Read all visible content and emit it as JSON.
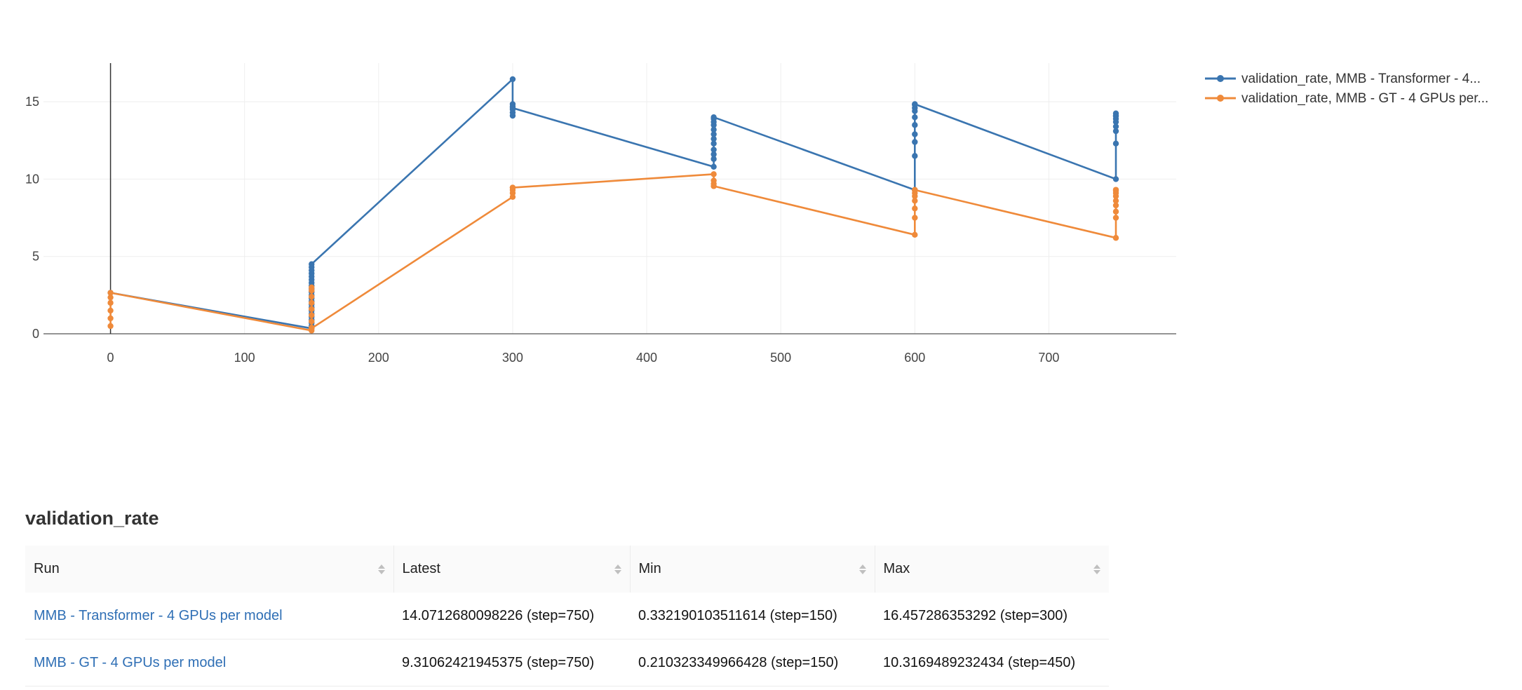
{
  "chart_data": {
    "type": "line",
    "title": "",
    "xlabel": "",
    "ylabel": "",
    "xlim": [
      -50,
      795
    ],
    "ylim": [
      0,
      17.5
    ],
    "x_ticks": [
      0,
      100,
      200,
      300,
      400,
      500,
      600,
      700
    ],
    "y_ticks": [
      0,
      5,
      10,
      15
    ],
    "grid": true,
    "legend_position": "top-right",
    "series": [
      {
        "name": "validation_rate, MMB - Transformer - 4...",
        "color": "#3a75b0",
        "points": [
          [
            0,
            2.65
          ],
          [
            150,
            0.35
          ],
          [
            150,
            0.5
          ],
          [
            150,
            0.7
          ],
          [
            150,
            0.9
          ],
          [
            150,
            1.1
          ],
          [
            150,
            1.3
          ],
          [
            150,
            1.5
          ],
          [
            150,
            1.7
          ],
          [
            150,
            1.9
          ],
          [
            150,
            2.1
          ],
          [
            150,
            2.3
          ],
          [
            150,
            2.5
          ],
          [
            150,
            2.7
          ],
          [
            150,
            2.9
          ],
          [
            150,
            3.1
          ],
          [
            150,
            3.3
          ],
          [
            150,
            3.5
          ],
          [
            150,
            3.7
          ],
          [
            150,
            3.9
          ],
          [
            150,
            4.1
          ],
          [
            150,
            4.3
          ],
          [
            150,
            4.5
          ],
          [
            300,
            16.46
          ],
          [
            300,
            14.1
          ],
          [
            300,
            14.3
          ],
          [
            300,
            14.5
          ],
          [
            300,
            14.7
          ],
          [
            300,
            14.85
          ],
          [
            300,
            14.6
          ],
          [
            450,
            10.8
          ],
          [
            450,
            11.3
          ],
          [
            450,
            11.6
          ],
          [
            450,
            11.9
          ],
          [
            450,
            12.3
          ],
          [
            450,
            12.6
          ],
          [
            450,
            12.9
          ],
          [
            450,
            13.2
          ],
          [
            450,
            13.5
          ],
          [
            450,
            13.7
          ],
          [
            450,
            13.9
          ],
          [
            450,
            14.0
          ],
          [
            600,
            9.3
          ],
          [
            600,
            11.5
          ],
          [
            600,
            12.4
          ],
          [
            600,
            12.9
          ],
          [
            600,
            13.5
          ],
          [
            600,
            14.0
          ],
          [
            600,
            14.4
          ],
          [
            600,
            14.6
          ],
          [
            600,
            14.8
          ],
          [
            600,
            14.85
          ],
          [
            750,
            10.0
          ],
          [
            750,
            12.3
          ],
          [
            750,
            13.1
          ],
          [
            750,
            13.4
          ],
          [
            750,
            13.7
          ],
          [
            750,
            13.9
          ],
          [
            750,
            14.1
          ],
          [
            750,
            14.25
          ],
          [
            750,
            14.07
          ]
        ]
      },
      {
        "name": "validation_rate, MMB - GT - 4 GPUs per...",
        "color": "#ef8a3a",
        "points": [
          [
            0,
            0.5
          ],
          [
            0,
            1.0
          ],
          [
            0,
            1.5
          ],
          [
            0,
            2.0
          ],
          [
            0,
            2.35
          ],
          [
            0,
            2.65
          ],
          [
            150,
            0.21
          ],
          [
            150,
            0.4
          ],
          [
            150,
            0.8
          ],
          [
            150,
            1.2
          ],
          [
            150,
            1.6
          ],
          [
            150,
            2.0
          ],
          [
            150,
            2.4
          ],
          [
            150,
            2.8
          ],
          [
            150,
            3.0
          ],
          [
            150,
            0.35
          ],
          [
            300,
            8.85
          ],
          [
            300,
            9.1
          ],
          [
            300,
            9.3
          ],
          [
            300,
            9.45
          ],
          [
            300,
            9.45
          ],
          [
            450,
            10.32
          ],
          [
            450,
            9.9
          ],
          [
            450,
            9.7
          ],
          [
            450,
            9.55
          ],
          [
            450,
            9.55
          ],
          [
            600,
            6.4
          ],
          [
            600,
            7.5
          ],
          [
            600,
            8.1
          ],
          [
            600,
            8.6
          ],
          [
            600,
            8.9
          ],
          [
            600,
            9.1
          ],
          [
            600,
            9.3
          ],
          [
            600,
            9.3
          ],
          [
            750,
            6.2
          ],
          [
            750,
            7.5
          ],
          [
            750,
            7.9
          ],
          [
            750,
            8.3
          ],
          [
            750,
            8.6
          ],
          [
            750,
            8.9
          ],
          [
            750,
            9.1
          ],
          [
            750,
            9.25
          ],
          [
            750,
            9.31
          ]
        ]
      }
    ]
  },
  "table": {
    "title": "validation_rate",
    "columns": [
      "Run",
      "Latest",
      "Min",
      "Max"
    ],
    "rows": [
      {
        "run": "MMB - Transformer - 4 GPUs per model",
        "latest": "14.0712680098226 (step=750)",
        "min": "0.332190103511614 (step=150)",
        "max": "16.457286353292 (step=300)"
      },
      {
        "run": "MMB - GT - 4 GPUs per model",
        "latest": "9.31062421945375 (step=750)",
        "min": "0.210323349966428 (step=150)",
        "max": "10.3169489232434 (step=450)"
      }
    ]
  }
}
